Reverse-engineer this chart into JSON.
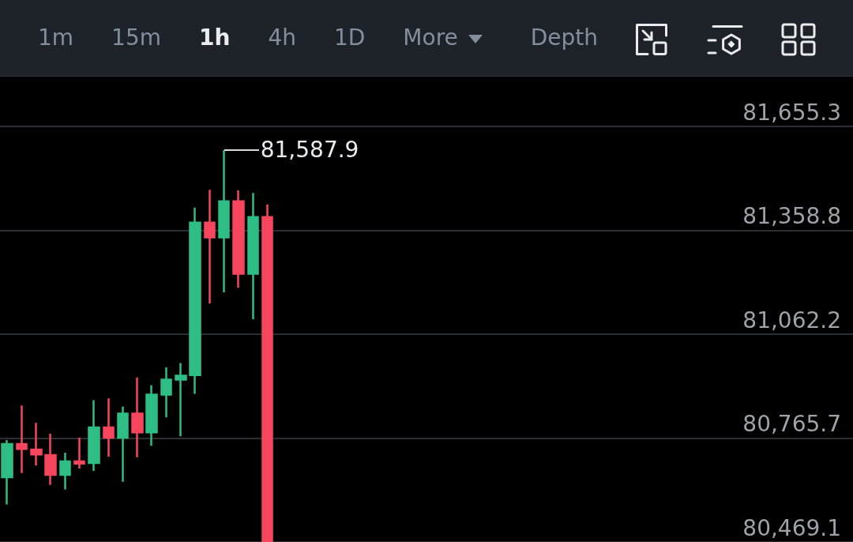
{
  "chart_data": {
    "type": "candlestick",
    "categories": [
      null,
      null,
      null,
      null,
      null,
      null,
      null,
      null,
      null,
      null,
      null,
      null,
      null,
      null,
      null,
      null,
      null,
      null,
      null,
      null,
      null,
      null,
      null,
      null,
      null,
      null,
      null,
      null,
      null,
      null,
      null,
      null,
      null,
      null,
      null,
      null,
      null,
      null,
      null,
      null,
      null,
      null,
      null,
      null,
      null,
      null,
      null,
      null,
      null,
      null,
      null,
      null,
      null,
      null,
      null,
      null,
      null,
      null,
      null
    ],
    "ohlc": [
      [
        80654,
        80760,
        80576,
        80749
      ],
      [
        80749,
        80859,
        80666,
        80735
      ],
      [
        80733,
        80809,
        80688,
        80719
      ],
      [
        80717,
        80778,
        80632,
        80661
      ],
      [
        80661,
        80724,
        80619,
        80699
      ],
      [
        80699,
        80767,
        80679,
        80693
      ],
      [
        80695,
        80874,
        80672,
        80796
      ],
      [
        80796,
        80879,
        80713,
        80767
      ],
      [
        80767,
        80856,
        80641,
        80836
      ],
      [
        80836,
        80939,
        80711,
        80782
      ],
      [
        80782,
        80917,
        80744,
        80890
      ],
      [
        80890,
        80968,
        80825,
        80933
      ],
      [
        80933,
        80980,
        80771,
        80944
      ],
      [
        80946,
        81424,
        80892,
        81381
      ],
      [
        81381,
        81475,
        81150,
        81339
      ],
      [
        81339,
        81587.9,
        81182,
        81442
      ],
      [
        81442,
        81473,
        81195,
        81235
      ],
      [
        81235,
        81466,
        81105,
        81397
      ],
      [
        81397,
        81433,
        80469.1,
        80469.1
      ],
      null,
      null,
      null,
      null,
      null,
      null,
      null,
      null,
      null,
      null,
      null,
      null,
      null,
      null,
      null,
      null,
      null,
      null,
      null,
      null,
      null,
      null,
      null,
      null,
      null,
      null,
      null,
      null,
      null,
      null,
      null,
      null,
      null,
      null,
      null,
      null,
      null,
      null,
      null,
      null
    ],
    "colors": [
      "#2ebd85",
      "#f6465d",
      "#f6465d",
      "#f6465d",
      "#2ebd85",
      "#f6465d",
      "#2ebd85",
      "#f6465d",
      "#2ebd85",
      "#f6465d",
      "#2ebd85",
      "#2ebd85",
      "#2ebd85",
      "#2ebd85",
      "#f6465d",
      "#2ebd85",
      "#f6465d",
      "#2ebd85",
      "#f6465d",
      null,
      null,
      null,
      null,
      null,
      null,
      null,
      null,
      null,
      null,
      null,
      null,
      null,
      null,
      null,
      null,
      null,
      null,
      null,
      null,
      null,
      null,
      null,
      null,
      null,
      null,
      null,
      null,
      null,
      null,
      null,
      null,
      null,
      null,
      null,
      null,
      null,
      null,
      null,
      null
    ],
    "ylim": [
      80469.1,
      81798
    ],
    "yticks": [
      {
        "value": 80469.1,
        "label": "80,469.1"
      },
      {
        "value": 80765.7,
        "label": "80,765.7"
      },
      {
        "value": 81062.2,
        "label": "81,062.2"
      },
      {
        "value": 81358.8,
        "label": "81,358.8"
      },
      {
        "value": 81655.3,
        "label": "81,655.3"
      }
    ],
    "grid": "y",
    "tick_labels": "y",
    "annotations": [
      "1m",
      "15m",
      "1h",
      "4h",
      "1D",
      "More",
      "Depth",
      "81,587.9"
    ]
  }
}
